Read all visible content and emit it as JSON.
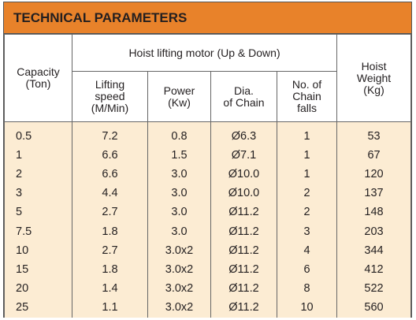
{
  "header": {
    "title": "TECHNICAL PARAMETERS"
  },
  "table": {
    "group_header": "Hoist lifting motor (Up & Down)",
    "columns": [
      "Capacity\n(Ton)",
      "Lifting\nspeed\n(M/Min)",
      "Power\n(Kw)",
      "Dia.\nof Chain",
      "No. of\nChain\nfalls",
      "Hoist\nWeight\n(Kg)"
    ],
    "rows": [
      [
        "0.5",
        "7.2",
        "0.8",
        "Ø6.3",
        "1",
        "53"
      ],
      [
        "1",
        "6.6",
        "1.5",
        "Ø7.1",
        "1",
        "67"
      ],
      [
        "2",
        "6.6",
        "3.0",
        "Ø10.0",
        "1",
        "120"
      ],
      [
        "3",
        "4.4",
        "3.0",
        "Ø10.0",
        "2",
        "137"
      ],
      [
        "5",
        "2.7",
        "3.0",
        "Ø11.2",
        "2",
        "148"
      ],
      [
        "7.5",
        "1.8",
        "3.0",
        "Ø11.2",
        "3",
        "203"
      ],
      [
        "10",
        "2.7",
        "3.0x2",
        "Ø11.2",
        "4",
        "344"
      ],
      [
        "15",
        "1.8",
        "3.0x2",
        "Ø11.2",
        "6",
        "412"
      ],
      [
        "20",
        "1.4",
        "3.0x2",
        "Ø11.2",
        "8",
        "522"
      ],
      [
        "25",
        "1.1",
        "3.0x2",
        "Ø11.2",
        "10",
        "560"
      ]
    ]
  }
}
